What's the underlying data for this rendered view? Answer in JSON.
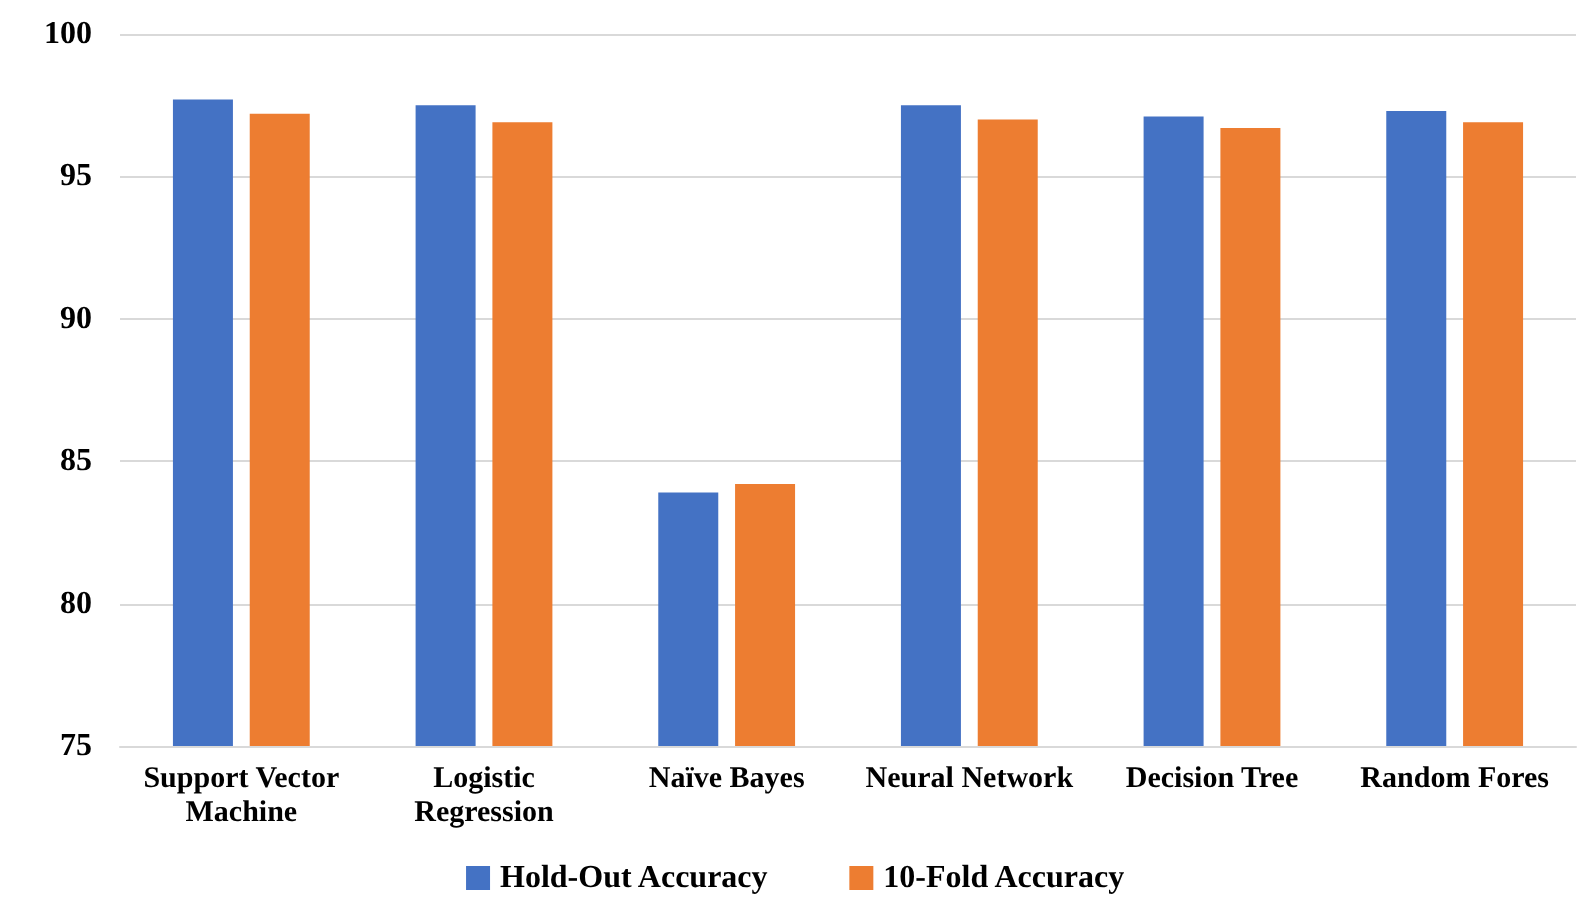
{
  "chart_data": {
    "type": "bar",
    "categories": [
      "Support Vector\nMachine",
      "Logistic\nRegression",
      "Naïve Bayes",
      "Neural Network",
      "Decision Tree",
      "Random Fores"
    ],
    "series": [
      {
        "name": "Hold-Out Accuracy",
        "color": "#4472c4",
        "values": [
          97.7,
          97.5,
          83.9,
          97.5,
          97.1,
          97.3
        ]
      },
      {
        "name": "10-Fold Accuracy",
        "color": "#ed7d31",
        "values": [
          97.2,
          96.9,
          84.2,
          97.0,
          96.7,
          96.9
        ]
      }
    ],
    "ylim": [
      75,
      100
    ],
    "yticks": [
      75,
      80,
      85,
      90,
      95,
      100
    ],
    "grid": "y",
    "legend": "bottom"
  }
}
